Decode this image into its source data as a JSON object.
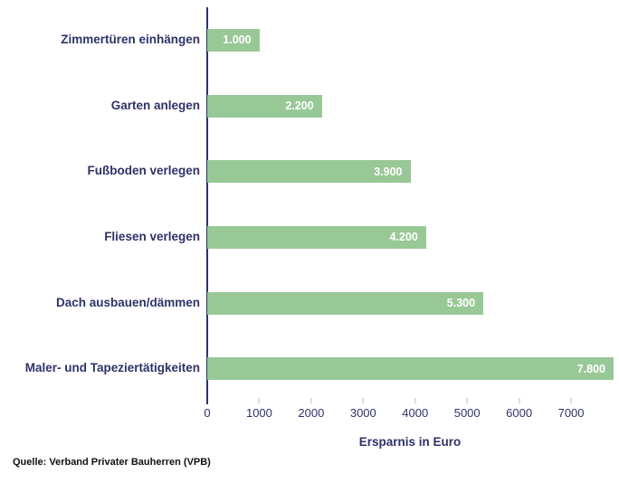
{
  "chart_data": {
    "type": "bar",
    "orientation": "horizontal",
    "categories": [
      "Zimmertüren einhängen",
      "Garten anlegen",
      "Fußboden verlegen",
      "Fliesen verlegen",
      "Dach ausbauen/dämmen",
      "Maler- und Tapeziertätigkeiten"
    ],
    "values": [
      1000,
      2200,
      3900,
      4200,
      5300,
      7800
    ],
    "value_labels": [
      "1.000",
      "2.200",
      "3.900",
      "4.200",
      "5.300",
      "7.800"
    ],
    "xlabel": "Ersparnis in Euro",
    "x_ticks": [
      0,
      1000,
      2000,
      3000,
      4000,
      5000,
      6000,
      7000
    ],
    "xlim": [
      0,
      7800
    ],
    "grid": false,
    "legend_position": "none",
    "bar_color": "#98c896",
    "label_color": "#2e3268",
    "value_text_color": "#ffffff"
  },
  "source": "Quelle: Verband Privater Bauherren (VPB)"
}
